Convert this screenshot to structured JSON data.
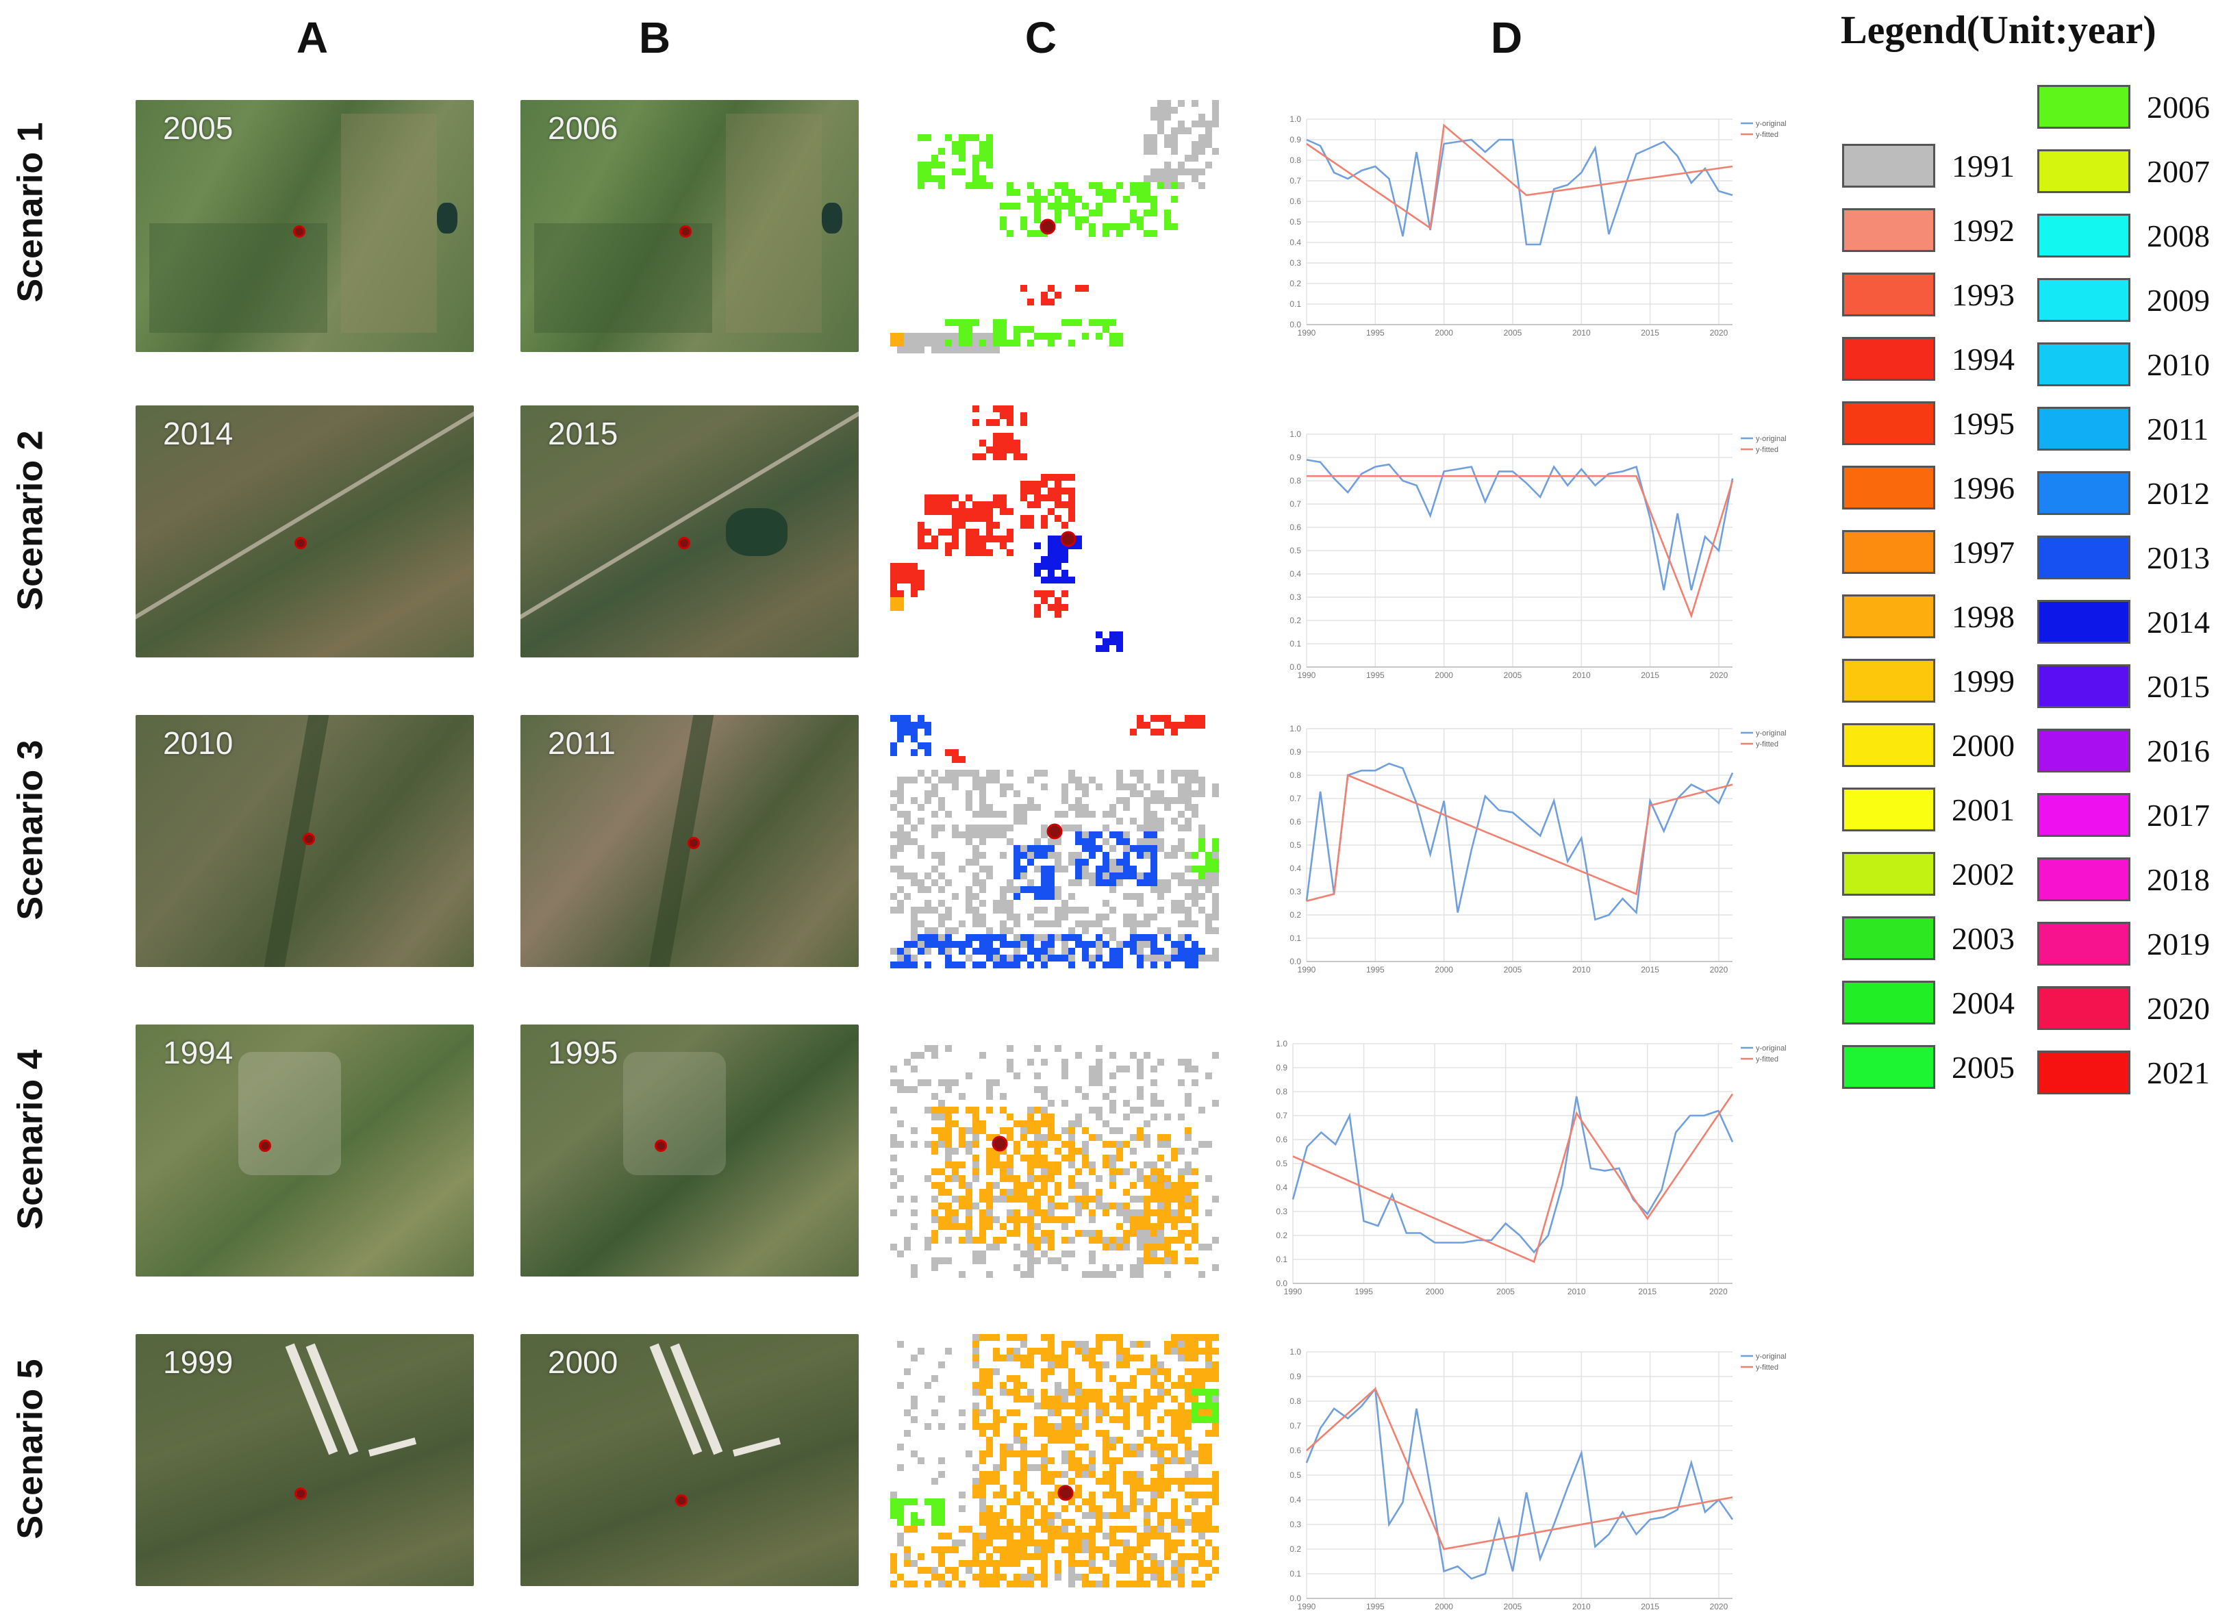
{
  "columns": {
    "a": "A",
    "b": "B",
    "c": "C",
    "d": "D"
  },
  "scenarios": [
    {
      "label": "Scenario 1",
      "year_a": "2005",
      "year_b": "2006"
    },
    {
      "label": "Scenario 2",
      "year_a": "2014",
      "year_b": "2015"
    },
    {
      "label": "Scenario 3",
      "year_a": "2010",
      "year_b": "2011"
    },
    {
      "label": "Scenario 4",
      "year_a": "1994",
      "year_b": "1995"
    },
    {
      "label": "Scenario 5",
      "year_a": "1999",
      "year_b": "2000"
    }
  ],
  "legend": {
    "title": "Legend(Unit:year)",
    "items": [
      {
        "year": "1991",
        "color": "#bcbcbc"
      },
      {
        "year": "1992",
        "color": "#f58a75"
      },
      {
        "year": "1993",
        "color": "#f75b3e"
      },
      {
        "year": "1994",
        "color": "#f52a1a"
      },
      {
        "year": "1995",
        "color": "#f73a12"
      },
      {
        "year": "1996",
        "color": "#fa6a0c"
      },
      {
        "year": "1997",
        "color": "#fb8c0f"
      },
      {
        "year": "1998",
        "color": "#fdad0e"
      },
      {
        "year": "1999",
        "color": "#fdc70c"
      },
      {
        "year": "2000",
        "color": "#fde80c"
      },
      {
        "year": "2001",
        "color": "#faff12"
      },
      {
        "year": "2002",
        "color": "#c2f212"
      },
      {
        "year": "2003",
        "color": "#2de820"
      },
      {
        "year": "2004",
        "color": "#21ee25"
      },
      {
        "year": "2005",
        "color": "#1ef532"
      },
      {
        "year": "2006",
        "color": "#5ef51a"
      },
      {
        "year": "2007",
        "color": "#d5f50e"
      },
      {
        "year": "2008",
        "color": "#12f7f0"
      },
      {
        "year": "2009",
        "color": "#14e8f7"
      },
      {
        "year": "2010",
        "color": "#11caf5"
      },
      {
        "year": "2011",
        "color": "#10aef5"
      },
      {
        "year": "2012",
        "color": "#1a84f5"
      },
      {
        "year": "2013",
        "color": "#1751f2"
      },
      {
        "year": "2014",
        "color": "#0d17e8"
      },
      {
        "year": "2015",
        "color": "#5a0ef2"
      },
      {
        "year": "2016",
        "color": "#a90ef0"
      },
      {
        "year": "2017",
        "color": "#ee10ee"
      },
      {
        "year": "2018",
        "color": "#f712d0"
      },
      {
        "year": "2019",
        "color": "#f7138e"
      },
      {
        "year": "2020",
        "color": "#f5134f"
      },
      {
        "year": "2021",
        "color": "#f71212"
      }
    ]
  },
  "chart_data": [
    {
      "type": "line",
      "title": "",
      "xlabel": "",
      "ylabel": "",
      "xlim": [
        1990,
        2021
      ],
      "ylim": [
        0,
        1
      ],
      "xticks": [
        "1990",
        "1995",
        "2000",
        "2005",
        "2010",
        "2015",
        "2020"
      ],
      "yticks": [
        "0.0",
        "0.1",
        "0.2",
        "0.3",
        "0.4",
        "0.5",
        "0.6",
        "0.7",
        "0.8",
        "0.9",
        "1.0"
      ],
      "legend": [
        "y-original",
        "y-fitted"
      ],
      "series": [
        {
          "name": "y-original",
          "x": [
            1990,
            1991,
            1992,
            1993,
            1994,
            1995,
            1996,
            1997,
            1998,
            1999,
            2000,
            2001,
            2002,
            2003,
            2004,
            2005,
            2006,
            2007,
            2008,
            2009,
            2010,
            2011,
            2012,
            2013,
            2014,
            2015,
            2016,
            2017,
            2018,
            2019,
            2020,
            2021
          ],
          "values": [
            0.9,
            0.87,
            0.74,
            0.71,
            0.75,
            0.77,
            0.71,
            0.43,
            0.84,
            0.46,
            0.88,
            0.89,
            0.9,
            0.84,
            0.9,
            0.9,
            0.39,
            0.39,
            0.66,
            0.68,
            0.74,
            0.86,
            0.44,
            0.64,
            0.83,
            0.86,
            0.89,
            0.82,
            0.69,
            0.76,
            0.65,
            0.63
          ]
        },
        {
          "name": "y-fitted",
          "x": [
            1990,
            1999,
            2000,
            2006,
            2021
          ],
          "values": [
            0.88,
            0.47,
            0.97,
            0.63,
            0.77
          ]
        }
      ]
    },
    {
      "type": "line",
      "title": "",
      "xlabel": "",
      "ylabel": "",
      "xlim": [
        1990,
        2021
      ],
      "ylim": [
        0,
        1
      ],
      "xticks": [
        "1990",
        "1995",
        "2000",
        "2005",
        "2010",
        "2015",
        "2020"
      ],
      "yticks": [
        "0.0",
        "0.1",
        "0.2",
        "0.3",
        "0.4",
        "0.5",
        "0.6",
        "0.7",
        "0.8",
        "0.9",
        "1.0"
      ],
      "legend": [
        "y-original",
        "y-fitted"
      ],
      "series": [
        {
          "name": "y-original",
          "x": [
            1990,
            1991,
            1992,
            1993,
            1994,
            1995,
            1996,
            1997,
            1998,
            1999,
            2000,
            2001,
            2002,
            2003,
            2004,
            2005,
            2006,
            2007,
            2008,
            2009,
            2010,
            2011,
            2012,
            2013,
            2014,
            2015,
            2016,
            2017,
            2018,
            2019,
            2020,
            2021
          ],
          "values": [
            0.89,
            0.88,
            0.81,
            0.75,
            0.83,
            0.86,
            0.87,
            0.8,
            0.78,
            0.65,
            0.84,
            0.85,
            0.86,
            0.71,
            0.84,
            0.84,
            0.79,
            0.73,
            0.86,
            0.78,
            0.85,
            0.78,
            0.83,
            0.84,
            0.86,
            0.64,
            0.33,
            0.66,
            0.33,
            0.56,
            0.5,
            0.81
          ]
        },
        {
          "name": "y-fitted",
          "x": [
            1990,
            2014,
            2018,
            2021
          ],
          "values": [
            0.82,
            0.82,
            0.22,
            0.8
          ]
        }
      ]
    },
    {
      "type": "line",
      "title": "",
      "xlabel": "",
      "ylabel": "",
      "xlim": [
        1990,
        2021
      ],
      "ylim": [
        0,
        1
      ],
      "xticks": [
        "1990",
        "1995",
        "2000",
        "2005",
        "2010",
        "2015",
        "2020"
      ],
      "yticks": [
        "0.0",
        "0.1",
        "0.2",
        "0.3",
        "0.4",
        "0.5",
        "0.6",
        "0.7",
        "0.8",
        "0.9",
        "1.0"
      ],
      "legend": [
        "y-original",
        "y-fitted"
      ],
      "series": [
        {
          "name": "y-original",
          "x": [
            1990,
            1991,
            1992,
            1993,
            1994,
            1995,
            1996,
            1997,
            1998,
            1999,
            2000,
            2001,
            2002,
            2003,
            2004,
            2005,
            2006,
            2007,
            2008,
            2009,
            2010,
            2011,
            2012,
            2013,
            2014,
            2015,
            2016,
            2017,
            2018,
            2019,
            2020,
            2021
          ],
          "values": [
            0.26,
            0.73,
            0.29,
            0.8,
            0.82,
            0.82,
            0.85,
            0.83,
            0.68,
            0.46,
            0.69,
            0.21,
            0.48,
            0.71,
            0.65,
            0.64,
            0.59,
            0.54,
            0.69,
            0.43,
            0.53,
            0.18,
            0.2,
            0.27,
            0.21,
            0.69,
            0.56,
            0.7,
            0.76,
            0.73,
            0.68,
            0.81
          ]
        },
        {
          "name": "y-fitted",
          "x": [
            1990,
            1992,
            1993,
            2014,
            2015,
            2021
          ],
          "values": [
            0.26,
            0.29,
            0.8,
            0.29,
            0.67,
            0.76
          ]
        }
      ]
    },
    {
      "type": "line",
      "title": "",
      "xlabel": "",
      "ylabel": "",
      "xlim": [
        1990,
        2021
      ],
      "ylim": [
        0,
        1
      ],
      "xticks": [
        "1990",
        "1995",
        "2000",
        "2005",
        "2010",
        "2015",
        "2020"
      ],
      "yticks": [
        "0.0",
        "0.1",
        "0.2",
        "0.3",
        "0.4",
        "0.5",
        "0.6",
        "0.7",
        "0.8",
        "0.9",
        "1.0"
      ],
      "legend": [
        "y-original",
        "y-fitted"
      ],
      "series": [
        {
          "name": "y-original",
          "x": [
            1990,
            1991,
            1992,
            1993,
            1994,
            1995,
            1996,
            1997,
            1998,
            1999,
            2000,
            2001,
            2002,
            2003,
            2004,
            2005,
            2006,
            2007,
            2008,
            2009,
            2010,
            2011,
            2012,
            2013,
            2014,
            2015,
            2016,
            2017,
            2018,
            2019,
            2020,
            2021
          ],
          "values": [
            0.35,
            0.57,
            0.63,
            0.58,
            0.7,
            0.26,
            0.24,
            0.37,
            0.21,
            0.21,
            0.17,
            0.17,
            0.17,
            0.18,
            0.18,
            0.25,
            0.2,
            0.13,
            0.2,
            0.41,
            0.78,
            0.48,
            0.47,
            0.48,
            0.35,
            0.29,
            0.39,
            0.63,
            0.7,
            0.7,
            0.72,
            0.59
          ]
        },
        {
          "name": "y-fitted",
          "x": [
            1990,
            2007,
            2010,
            2015,
            2021
          ],
          "values": [
            0.53,
            0.09,
            0.71,
            0.27,
            0.79
          ]
        }
      ]
    },
    {
      "type": "line",
      "title": "",
      "xlabel": "",
      "ylabel": "",
      "xlim": [
        1990,
        2021
      ],
      "ylim": [
        0,
        1
      ],
      "xticks": [
        "1990",
        "1995",
        "2000",
        "2005",
        "2010",
        "2015",
        "2020"
      ],
      "yticks": [
        "0.0",
        "0.1",
        "0.2",
        "0.3",
        "0.4",
        "0.5",
        "0.6",
        "0.7",
        "0.8",
        "0.9",
        "1.0"
      ],
      "legend": [
        "y-original",
        "y-fitted"
      ],
      "series": [
        {
          "name": "y-original",
          "x": [
            1990,
            1991,
            1992,
            1993,
            1994,
            1995,
            1996,
            1997,
            1998,
            1999,
            2000,
            2001,
            2002,
            2003,
            2004,
            2005,
            2006,
            2007,
            2008,
            2009,
            2010,
            2011,
            2012,
            2013,
            2014,
            2015,
            2016,
            2017,
            2018,
            2019,
            2020,
            2021
          ],
          "values": [
            0.55,
            0.69,
            0.77,
            0.73,
            0.78,
            0.85,
            0.3,
            0.39,
            0.77,
            0.45,
            0.11,
            0.13,
            0.08,
            0.1,
            0.32,
            0.11,
            0.43,
            0.16,
            0.3,
            0.45,
            0.59,
            0.21,
            0.26,
            0.35,
            0.26,
            0.32,
            0.33,
            0.36,
            0.55,
            0.35,
            0.4,
            0.32
          ]
        },
        {
          "name": "y-fitted",
          "x": [
            1990,
            1995,
            2000,
            2021
          ],
          "values": [
            0.6,
            0.85,
            0.2,
            0.41
          ]
        }
      ]
    }
  ]
}
